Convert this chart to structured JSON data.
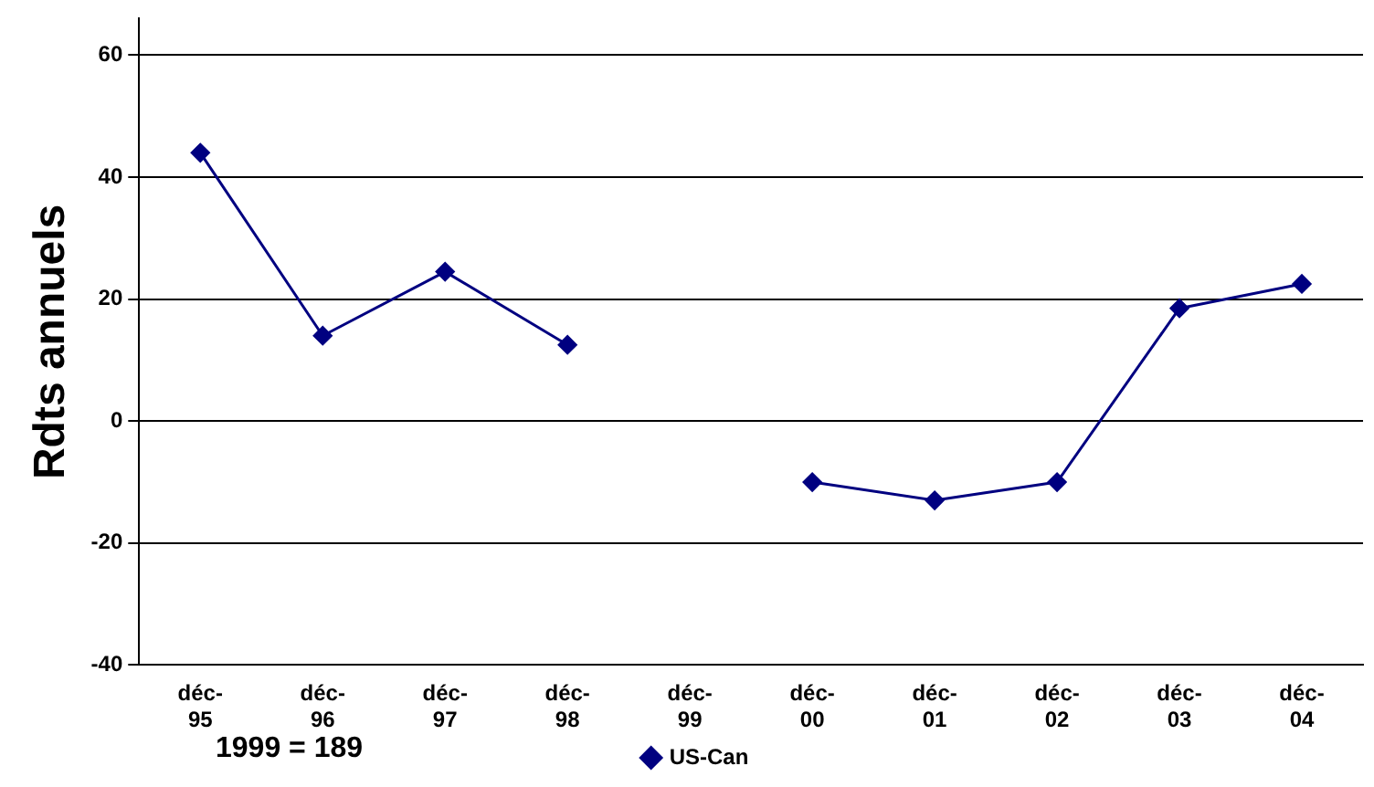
{
  "chart_data": {
    "type": "line",
    "ylabel": "Rdts annuels",
    "categories": [
      "déc-95",
      "déc-96",
      "déc-97",
      "déc-98",
      "déc-99",
      "déc-00",
      "déc-01",
      "déc-02",
      "déc-03",
      "déc-04"
    ],
    "series": [
      {
        "name": "US-Can",
        "color": "#000080",
        "values": [
          44,
          14,
          24.5,
          12.5,
          null,
          -10,
          -13,
          -10,
          18.5,
          22.5
        ]
      }
    ],
    "ylim": [
      -40,
      66
    ],
    "yticks": [
      -40,
      -20,
      0,
      20,
      40,
      60
    ],
    "grid": "y",
    "legend": "bottom",
    "marker": "diamond",
    "line_style": "solid",
    "annotations": [
      "1999 = 189"
    ]
  }
}
